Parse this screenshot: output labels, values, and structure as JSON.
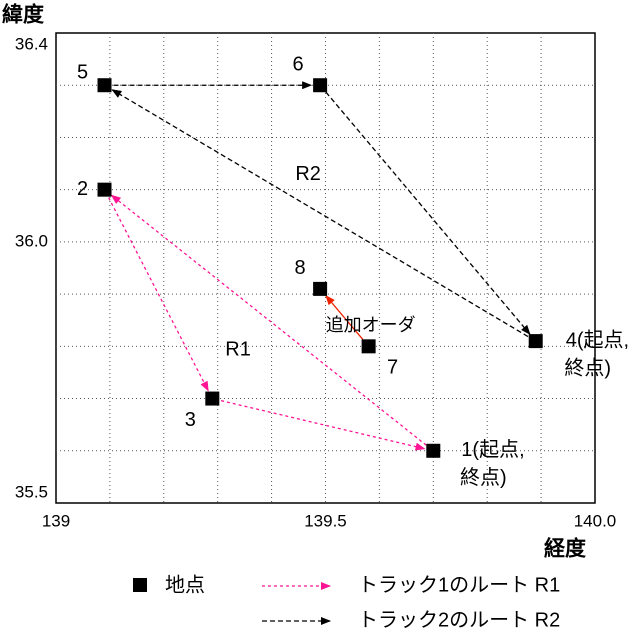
{
  "chart_data": {
    "type": "scatter",
    "y_label": "緯度",
    "x_label": "経度",
    "xlim": [
      139,
      140
    ],
    "ylim": [
      35.5,
      36.4
    ],
    "xticks": [
      139,
      139.5,
      {
        "value": 140,
        "label": "140.0"
      }
    ],
    "yticks": [
      35.5,
      {
        "value": 36,
        "label": "36.0"
      },
      36.4
    ],
    "xgrid": [
      139.1,
      139.2,
      139.3,
      139.4,
      139.5,
      139.6,
      139.7,
      139.8,
      139.9
    ],
    "ygrid": [
      35.6,
      35.7,
      35.8,
      35.9,
      36.0,
      36.1,
      36.2,
      36.3
    ],
    "points": {
      "name": "地点",
      "color": "#000000",
      "x": [
        139.7,
        139.09,
        139.29,
        139.89,
        139.09,
        139.49,
        139.58,
        139.49
      ],
      "y": [
        35.6,
        36.1,
        35.7,
        35.81,
        36.3,
        36.3,
        35.8,
        35.91
      ],
      "labels": [
        [
          "1(起点,",
          "終点)"
        ],
        [
          "2"
        ],
        [
          "3"
        ],
        [
          "4(起点,",
          "終点)"
        ],
        [
          "5"
        ],
        [
          "6"
        ],
        [
          "7"
        ],
        [
          "8"
        ]
      ]
    },
    "series": [
      {
        "name": "トラック1のルート R1",
        "label": "R1",
        "color": "#ff1493",
        "dash": "3,3",
        "x": [
          139.7,
          139.09,
          139.29,
          139.7
        ],
        "y": [
          35.6,
          36.1,
          35.7,
          35.6
        ]
      },
      {
        "name": "トラック2のルート R2",
        "label": "R2",
        "color": "#000000",
        "dash": "5,3",
        "x": [
          139.89,
          139.09,
          139.49,
          139.89
        ],
        "y": [
          35.81,
          36.3,
          36.3,
          35.81
        ]
      }
    ],
    "added_order": {
      "label": "追加オーダ",
      "color": "#ee2200",
      "x": [
        139.58,
        139.49
      ],
      "y": [
        35.8,
        35.91
      ]
    }
  }
}
